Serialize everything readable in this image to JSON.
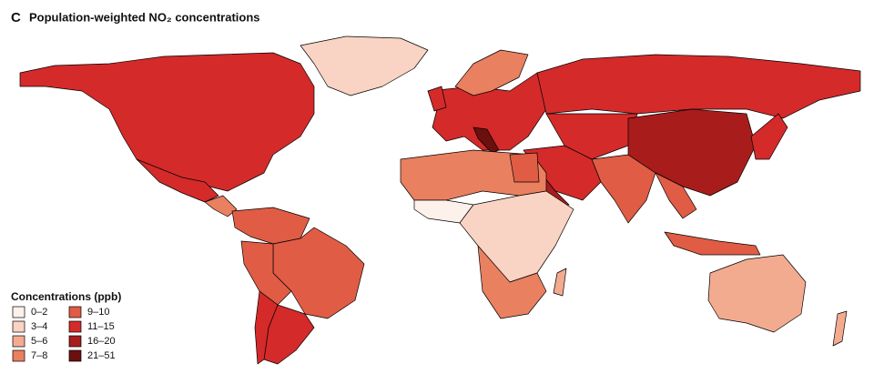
{
  "panel_label": "C",
  "title": "Population-weighted NO₂ concentrations",
  "legend": {
    "title": "Concentrations (ppb)",
    "items": [
      {
        "label": "0–2",
        "color": "#fdf1eb"
      },
      {
        "label": "3–4",
        "color": "#f9d3c3"
      },
      {
        "label": "5–6",
        "color": "#f3ab90"
      },
      {
        "label": "7–8",
        "color": "#e9805f"
      },
      {
        "label": "9–10",
        "color": "#e05c45"
      },
      {
        "label": "11–15",
        "color": "#d42a2a"
      },
      {
        "label": "16–20",
        "color": "#a81c1c"
      },
      {
        "label": "21–51",
        "color": "#6b0f0f"
      }
    ]
  }
}
